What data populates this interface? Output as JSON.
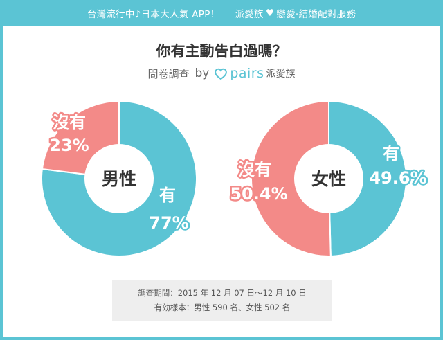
{
  "banner": {
    "left": "台灣流行中♪日本大人氣 APP！",
    "right_a": "派愛族",
    "right_b": "戀愛‧結婚配對服務"
  },
  "colors": {
    "background": "#5bc4d4",
    "yes": "#5bc4d4",
    "no": "#f38a88"
  },
  "title": "你有主動告白過嗎？",
  "subtitle": {
    "prefix": "問卷調查",
    "by": "by",
    "brand": "pairs",
    "brand_cn": "派愛族"
  },
  "chart_data": [
    {
      "type": "pie",
      "center_label": "男性",
      "slices": [
        {
          "label": "有",
          "value": 77,
          "value_label": "77%"
        },
        {
          "label": "沒有",
          "value": 23,
          "value_label": "23%"
        }
      ]
    },
    {
      "type": "pie",
      "center_label": "女性",
      "slices": [
        {
          "label": "有",
          "value": 49.6,
          "value_label": "49.6%"
        },
        {
          "label": "沒有",
          "value": 50.4,
          "value_label": "50.4%"
        }
      ]
    }
  ],
  "note": {
    "period": "調查期間：2015 年 12 月 07 日～12 月 10 日",
    "sample": "有効樣本：男性 590 名、女性 502 名"
  }
}
